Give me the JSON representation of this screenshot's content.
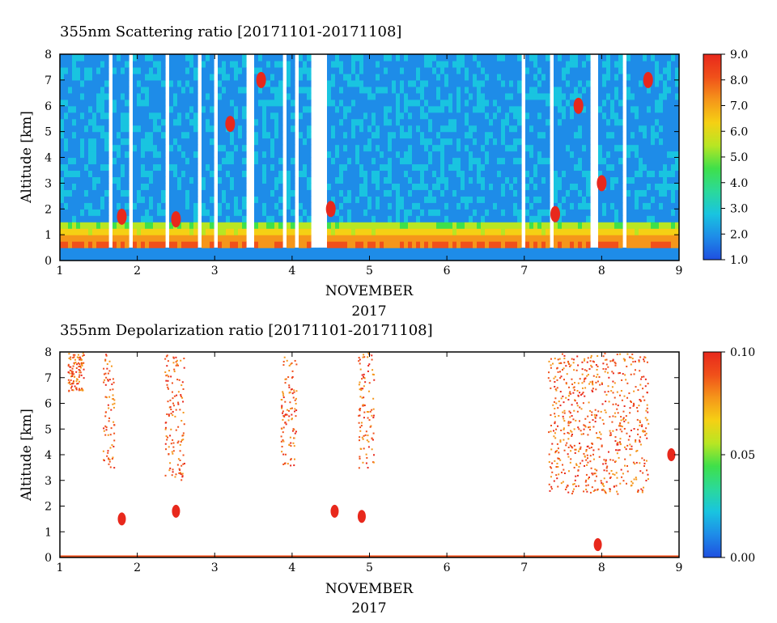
{
  "chart_data": [
    {
      "type": "heatmap",
      "title": "355nm Scattering ratio [20171101-20171108]",
      "xlabel": "NOVEMBER",
      "xlabel2": "2017",
      "ylabel": "Altitude [km]",
      "x_ticks": [
        "1",
        "2",
        "3",
        "4",
        "5",
        "6",
        "7",
        "8",
        "9"
      ],
      "y_ticks": [
        "0",
        "1",
        "2",
        "3",
        "4",
        "5",
        "6",
        "7",
        "8"
      ],
      "xlim": [
        1,
        9
      ],
      "ylim": [
        0,
        8
      ],
      "colorbar": {
        "ticks": [
          "1.0",
          "2.0",
          "3.0",
          "4.0",
          "5.0",
          "6.0",
          "7.0",
          "8.0",
          "9.0"
        ],
        "range": [
          1.0,
          9.0
        ],
        "colors": [
          "#1f4fe0",
          "#1e8ce8",
          "#19c4e0",
          "#2bd99a",
          "#3fe04a",
          "#b8e623",
          "#f5d014",
          "#f5961a",
          "#f0501a",
          "#e8281c"
        ]
      },
      "layers": {
        "surface_band": {
          "alt_range": [
            0.25,
            0.4
          ],
          "value": 2.0
        },
        "boundary_layer": {
          "alt_range": [
            0.4,
            1.6
          ],
          "peak_value": 8.0
        },
        "free_troposphere_value": 2.2,
        "cloud_events": [
          {
            "day": 1.8,
            "alt": 1.7,
            "value": 9.0
          },
          {
            "day": 2.5,
            "alt": 1.6,
            "value": 9.0
          },
          {
            "day": 3.2,
            "alt": 5.3,
            "value": 9.0
          },
          {
            "day": 3.6,
            "alt": 7.0,
            "value": 9.0
          },
          {
            "day": 4.5,
            "alt": 2.0,
            "value": 9.0
          },
          {
            "day": 7.4,
            "alt": 1.8,
            "value": 9.0
          },
          {
            "day": 7.7,
            "alt": 6.0,
            "value": 9.0
          },
          {
            "day": 8.0,
            "alt": 3.0,
            "value": 9.0
          },
          {
            "day": 8.6,
            "alt": 7.0,
            "value": 9.0
          }
        ],
        "data_gaps_days": [
          1.65,
          1.9,
          2.4,
          2.8,
          3.0,
          3.45,
          3.9,
          4.05,
          4.3,
          4.4,
          7.0,
          7.35,
          7.9,
          8.3
        ]
      }
    },
    {
      "type": "heatmap",
      "title": "355nm Depolarization ratio [20171101-20171108]",
      "xlabel": "NOVEMBER",
      "xlabel2": "2017",
      "ylabel": "Altitude [km]",
      "x_ticks": [
        "1",
        "2",
        "3",
        "4",
        "5",
        "6",
        "7",
        "8",
        "9"
      ],
      "y_ticks": [
        "0",
        "1",
        "2",
        "3",
        "4",
        "5",
        "6",
        "7",
        "8"
      ],
      "xlim": [
        1,
        9
      ],
      "ylim": [
        0,
        8
      ],
      "colorbar": {
        "ticks": [
          "0.00",
          "0.05",
          "0.10"
        ],
        "range": [
          0.0,
          0.1
        ],
        "colors": [
          "#1f4fe0",
          "#1e8ce8",
          "#19c4e0",
          "#2bd99a",
          "#3fe04a",
          "#b8e623",
          "#f5d014",
          "#f5961a",
          "#f0501a",
          "#e8281c"
        ]
      },
      "layers": {
        "high_depol_curtains": [
          {
            "day_start": 1.1,
            "day_end": 1.3,
            "alt_range": [
              6.5,
              8.0
            ]
          },
          {
            "day_start": 1.55,
            "day_end": 1.7,
            "alt_range": [
              3.5,
              8.0
            ]
          },
          {
            "day_start": 2.35,
            "day_end": 2.6,
            "alt_range": [
              3.0,
              8.0
            ]
          },
          {
            "day_start": 3.85,
            "day_end": 4.05,
            "alt_range": [
              3.5,
              8.0
            ]
          },
          {
            "day_start": 4.85,
            "day_end": 5.05,
            "alt_range": [
              3.5,
              8.0
            ]
          },
          {
            "day_start": 7.3,
            "day_end": 8.6,
            "alt_range": [
              2.5,
              8.0
            ]
          }
        ],
        "low_patches": [
          {
            "day": 1.8,
            "alt": 1.5
          },
          {
            "day": 2.5,
            "alt": 1.8
          },
          {
            "day": 4.55,
            "alt": 1.8
          },
          {
            "day": 4.9,
            "alt": 1.6
          },
          {
            "day": 7.95,
            "alt": 0.5
          },
          {
            "day": 8.9,
            "alt": 4.0
          }
        ],
        "max_value": 0.1
      }
    }
  ]
}
